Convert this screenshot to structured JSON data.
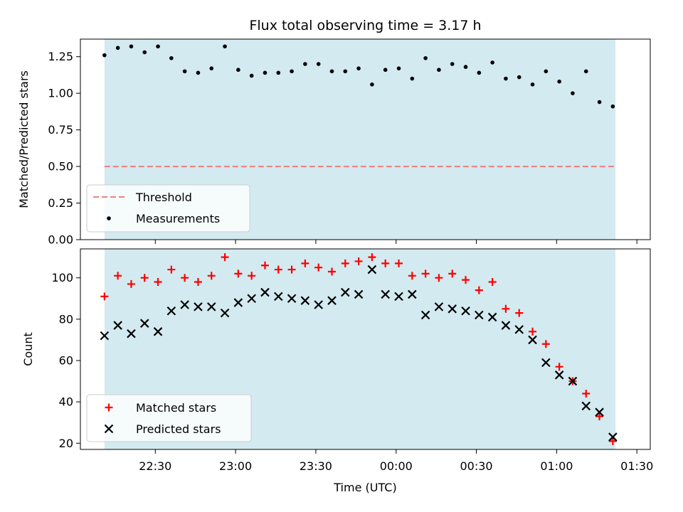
{
  "chart_data": [
    {
      "type": "scatter",
      "title": "Flux total observing time = 3.17 h",
      "xlabel": "",
      "ylabel": "Matched/Predicted stars",
      "xlim": [
        "22:02",
        "01:35"
      ],
      "ylim": [
        0,
        1.37
      ],
      "yticks": [
        "0.00",
        "0.25",
        "0.50",
        "0.75",
        "1.00",
        "1.25"
      ],
      "shaded_span": [
        "22:11",
        "01:22"
      ],
      "shaded_color": "#d3eaf0",
      "legend_position": "lower-left",
      "threshold": {
        "name": "Threshold",
        "value": 0.5,
        "color": "#f08080",
        "style": "dashed"
      },
      "series": [
        {
          "name": "Measurements",
          "marker": "dot",
          "color": "#000000",
          "x": [
            "22:11",
            "22:16",
            "22:21",
            "22:26",
            "22:31",
            "22:36",
            "22:41",
            "22:46",
            "22:51",
            "22:56",
            "23:01",
            "23:06",
            "23:11",
            "23:16",
            "23:21",
            "23:26",
            "23:31",
            "23:36",
            "23:41",
            "23:46",
            "23:51",
            "23:56",
            "00:01",
            "00:06",
            "00:11",
            "00:16",
            "00:21",
            "00:26",
            "00:31",
            "00:36",
            "00:41",
            "00:46",
            "00:51",
            "00:56",
            "01:01",
            "01:06",
            "01:11",
            "01:16",
            "01:21"
          ],
          "y": [
            1.26,
            1.31,
            1.32,
            1.28,
            1.32,
            1.24,
            1.15,
            1.14,
            1.17,
            1.32,
            1.16,
            1.12,
            1.14,
            1.14,
            1.15,
            1.2,
            1.2,
            1.15,
            1.15,
            1.17,
            1.06,
            1.16,
            1.17,
            1.1,
            1.24,
            1.16,
            1.2,
            1.18,
            1.14,
            1.21,
            1.1,
            1.11,
            1.06,
            1.15,
            1.08,
            1.0,
            1.15,
            0.94,
            0.91
          ]
        }
      ]
    },
    {
      "type": "scatter",
      "title": "",
      "xlabel": "Time (UTC)",
      "ylabel": "Count",
      "xlim": [
        "22:02",
        "01:35"
      ],
      "ylim": [
        17,
        114
      ],
      "xticks": [
        "22:30",
        "23:00",
        "23:30",
        "00:00",
        "00:30",
        "01:00",
        "01:30"
      ],
      "yticks": [
        "20",
        "40",
        "60",
        "80",
        "100"
      ],
      "shaded_span": [
        "22:11",
        "01:22"
      ],
      "shaded_color": "#d3eaf0",
      "legend_position": "lower-left",
      "series": [
        {
          "name": "Matched stars",
          "marker": "plus",
          "color": "#ff0000",
          "x": [
            "22:11",
            "22:16",
            "22:21",
            "22:26",
            "22:31",
            "22:36",
            "22:41",
            "22:46",
            "22:51",
            "22:56",
            "23:01",
            "23:06",
            "23:11",
            "23:16",
            "23:21",
            "23:26",
            "23:31",
            "23:36",
            "23:41",
            "23:46",
            "23:51",
            "23:56",
            "00:01",
            "00:06",
            "00:11",
            "00:16",
            "00:21",
            "00:26",
            "00:31",
            "00:36",
            "00:41",
            "00:46",
            "00:51",
            "00:56",
            "01:01",
            "01:06",
            "01:11",
            "01:16",
            "01:21"
          ],
          "y": [
            91,
            101,
            97,
            100,
            98,
            104,
            100,
            98,
            101,
            110,
            102,
            101,
            106,
            104,
            104,
            107,
            105,
            103,
            107,
            108,
            110,
            107,
            107,
            101,
            102,
            100,
            102,
            99,
            94,
            98,
            85,
            83,
            74,
            68,
            57,
            50,
            44,
            33,
            21
          ]
        },
        {
          "name": "Predicted stars",
          "marker": "x",
          "color": "#000000",
          "x": [
            "22:11",
            "22:16",
            "22:21",
            "22:26",
            "22:31",
            "22:36",
            "22:41",
            "22:46",
            "22:51",
            "22:56",
            "23:01",
            "23:06",
            "23:11",
            "23:16",
            "23:21",
            "23:26",
            "23:31",
            "23:36",
            "23:41",
            "23:46",
            "23:51",
            "23:56",
            "00:01",
            "00:06",
            "00:11",
            "00:16",
            "00:21",
            "00:26",
            "00:31",
            "00:36",
            "00:41",
            "00:46",
            "00:51",
            "00:56",
            "01:01",
            "01:06",
            "01:11",
            "01:16",
            "01:21"
          ],
          "y": [
            72,
            77,
            73,
            78,
            74,
            84,
            87,
            86,
            86,
            83,
            88,
            90,
            93,
            91,
            90,
            89,
            87,
            89,
            93,
            92,
            104,
            92,
            91,
            92,
            82,
            86,
            85,
            84,
            82,
            81,
            77,
            75,
            70,
            59,
            53,
            50,
            38,
            35,
            23
          ]
        }
      ]
    }
  ]
}
